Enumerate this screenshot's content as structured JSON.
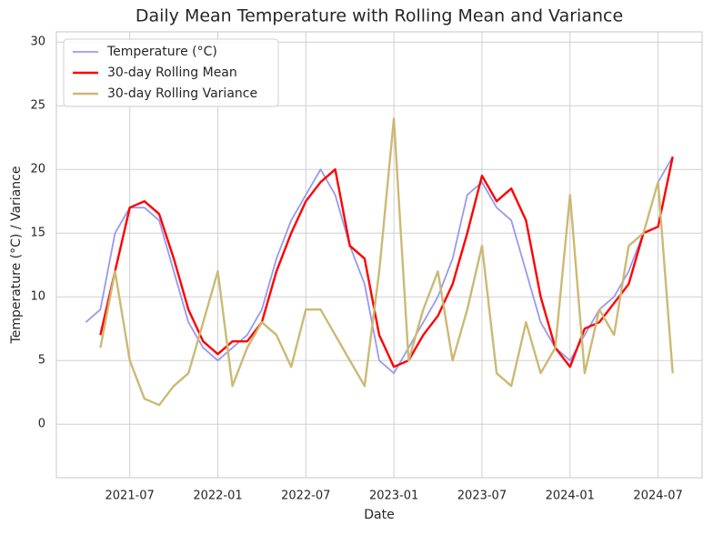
{
  "chart_data": {
    "type": "line",
    "title": "Daily Mean Temperature with Rolling Mean and Variance",
    "x_label": "Date",
    "y_label": "Temperature (°C) / Variance",
    "x": [
      "2021-04",
      "2021-05",
      "2021-06",
      "2021-07",
      "2021-08",
      "2021-09",
      "2021-10",
      "2021-11",
      "2021-12",
      "2022-01",
      "2022-02",
      "2022-03",
      "2022-04",
      "2022-05",
      "2022-06",
      "2022-07",
      "2022-08",
      "2022-09",
      "2022-10",
      "2022-11",
      "2022-12",
      "2023-01",
      "2023-02",
      "2023-03",
      "2023-04",
      "2023-05",
      "2023-06",
      "2023-07",
      "2023-08",
      "2023-09",
      "2023-10",
      "2023-11",
      "2023-12",
      "2024-01",
      "2024-02",
      "2024-03",
      "2024-04",
      "2024-05",
      "2024-06",
      "2024-07",
      "2024-08"
    ],
    "series": [
      {
        "name": "Temperature (°C)",
        "color": "#9999ee",
        "width": 1.8,
        "values": [
          8,
          9,
          15,
          17,
          17,
          16,
          12,
          8,
          6,
          5,
          6,
          7,
          9,
          13,
          16,
          18,
          20,
          18,
          14,
          11,
          5,
          4,
          6,
          8,
          10,
          13,
          18,
          19,
          17,
          16,
          12,
          8,
          6,
          5,
          7,
          9,
          10,
          12,
          15,
          19,
          21
        ]
      },
      {
        "name": "30-day Rolling Mean",
        "color": "#ff0000",
        "width": 2.4,
        "values": [
          null,
          7,
          12,
          17,
          17.5,
          16.5,
          13,
          9,
          6.5,
          5.5,
          6.5,
          6.5,
          8,
          12,
          15,
          17.5,
          19,
          20,
          14,
          13,
          7,
          4.5,
          5,
          7,
          8.5,
          11,
          15,
          19.5,
          17.5,
          18.5,
          16,
          10,
          6,
          4.5,
          7.5,
          8,
          9.5,
          11,
          15,
          15.5,
          21
        ]
      },
      {
        "name": "30-day Rolling Variance",
        "color": "#ccb974",
        "width": 2.4,
        "values": [
          null,
          6,
          12,
          5,
          2,
          1.5,
          3,
          4,
          8,
          12,
          3,
          6,
          8,
          7,
          4.5,
          9,
          9,
          7,
          5,
          3,
          12,
          24,
          5,
          9,
          12,
          5,
          9,
          14,
          4,
          3,
          8,
          4,
          6,
          18,
          4,
          9,
          7,
          14,
          15,
          19,
          4
        ]
      }
    ],
    "xlim": [
      "2021-02",
      "2024-10"
    ],
    "xticks": [
      "2021-07",
      "2022-01",
      "2022-07",
      "2023-01",
      "2023-07",
      "2024-01",
      "2024-07"
    ],
    "ylim": [
      -4.2,
      30.8
    ],
    "yticks": [
      0,
      5,
      10,
      15,
      20,
      25,
      30
    ],
    "grid": true,
    "legend": "upper-left"
  }
}
